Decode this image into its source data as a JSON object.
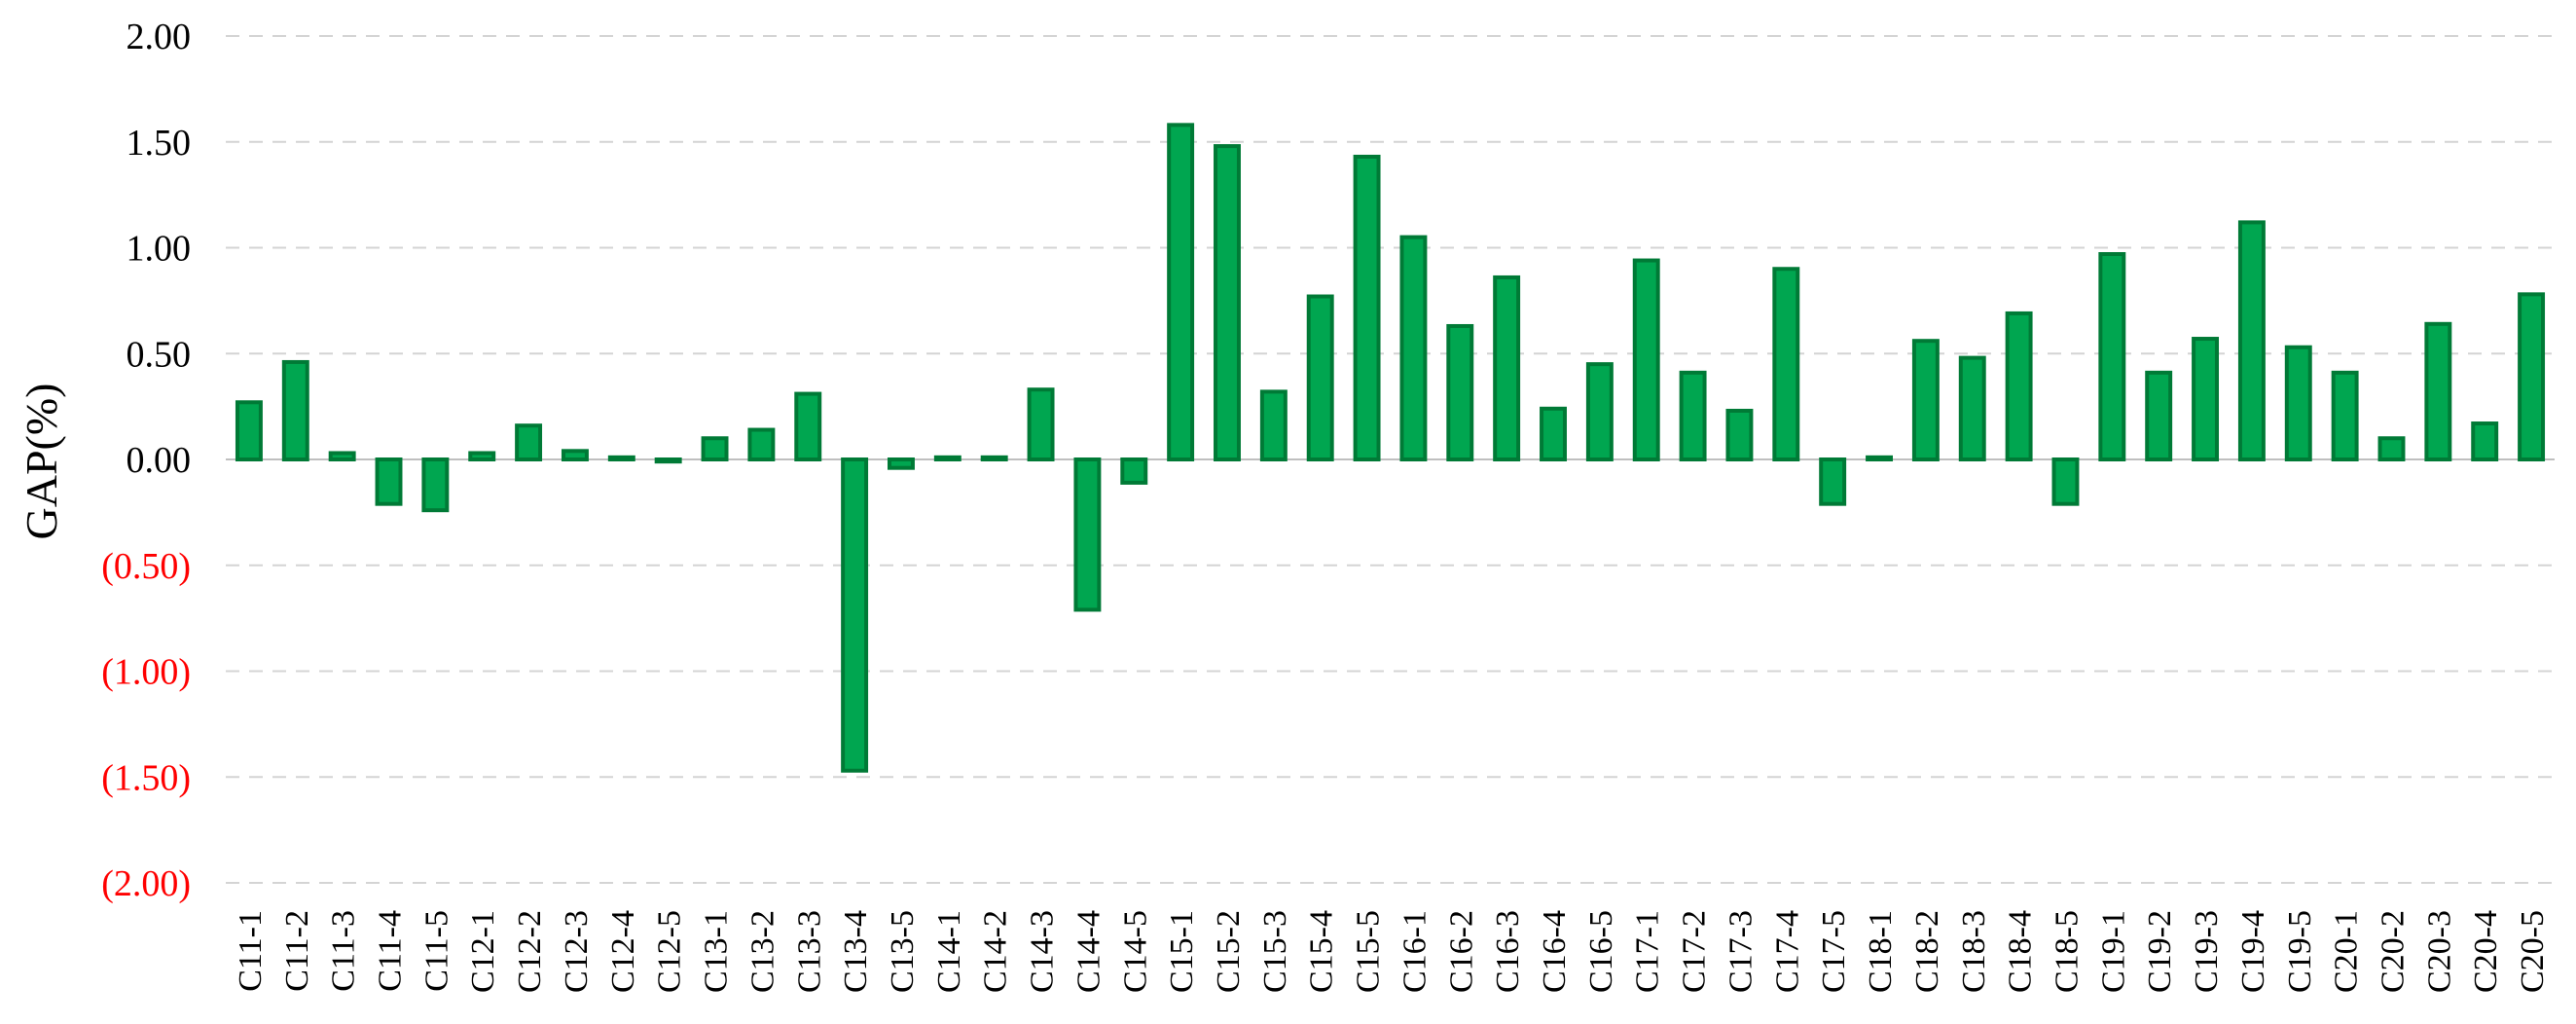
{
  "chart_data": {
    "type": "bar",
    "title": "",
    "xlabel": "",
    "ylabel": "GAP(%)",
    "ylim": [
      -2.0,
      2.0
    ],
    "yticks": [
      {
        "value": 2.0,
        "label": "2.00"
      },
      {
        "value": 1.5,
        "label": "1.50"
      },
      {
        "value": 1.0,
        "label": "1.00"
      },
      {
        "value": 0.5,
        "label": "0.50"
      },
      {
        "value": 0.0,
        "label": "0.00"
      },
      {
        "value": -0.5,
        "label": "(0.50)"
      },
      {
        "value": -1.0,
        "label": "(1.00)"
      },
      {
        "value": -1.5,
        "label": "(1.50)"
      },
      {
        "value": -2.0,
        "label": "(2.00)"
      }
    ],
    "grid": true,
    "categories": [
      "C11-1",
      "C11-2",
      "C11-3",
      "C11-4",
      "C11-5",
      "C12-1",
      "C12-2",
      "C12-3",
      "C12-4",
      "C12-5",
      "C13-1",
      "C13-2",
      "C13-3",
      "C13-4",
      "C13-5",
      "C14-1",
      "C14-2",
      "C14-3",
      "C14-4",
      "C14-5",
      "C15-1",
      "C15-2",
      "C15-3",
      "C15-4",
      "C15-5",
      "C16-1",
      "C16-2",
      "C16-3",
      "C16-4",
      "C16-5",
      "C17-1",
      "C17-2",
      "C17-3",
      "C17-4",
      "C17-5",
      "C18-1",
      "C18-2",
      "C18-3",
      "C18-4",
      "C18-5",
      "C19-1",
      "C19-2",
      "C19-3",
      "C19-4",
      "C19-5",
      "C20-1",
      "C20-2",
      "C20-3",
      "C20-4",
      "C20-5"
    ],
    "values": [
      0.27,
      0.46,
      0.03,
      -0.21,
      -0.24,
      0.03,
      0.16,
      0.04,
      0.01,
      -0.01,
      0.1,
      0.14,
      0.31,
      -1.47,
      -0.04,
      0.01,
      0.01,
      0.33,
      -0.71,
      -0.11,
      1.58,
      1.48,
      0.32,
      0.77,
      1.43,
      1.05,
      0.63,
      0.86,
      0.24,
      0.45,
      0.94,
      0.41,
      0.23,
      0.9,
      -0.21,
      0.01,
      0.56,
      0.48,
      0.69,
      -0.21,
      0.97,
      0.41,
      0.57,
      1.12,
      0.53,
      0.41,
      0.1,
      0.64,
      0.17,
      0.78
    ],
    "colors": {
      "bar_fill": "#00a650",
      "bar_edge": "#007a36",
      "positive_tick": "#000000",
      "negative_tick": "#ff0000"
    }
  }
}
